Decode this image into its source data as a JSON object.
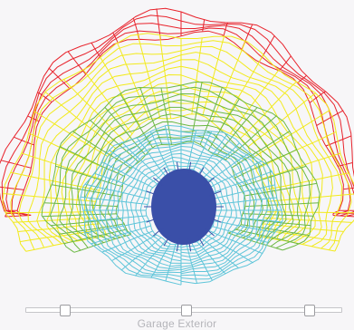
{
  "viewer": {
    "background_color": "#f7f6f8",
    "wireframe_layers": [
      {
        "name": "red-layer",
        "color": "#e8232c"
      },
      {
        "name": "yellow-layer",
        "color": "#f2ea1c"
      },
      {
        "name": "green-layer",
        "color": "#6cb944"
      },
      {
        "name": "cyan-layer",
        "color": "#5fc5d9"
      },
      {
        "name": "blue-core",
        "color": "#3a4fa8"
      }
    ]
  },
  "slider": {
    "label": "Garage Exterior",
    "thumb_count": 3
  }
}
